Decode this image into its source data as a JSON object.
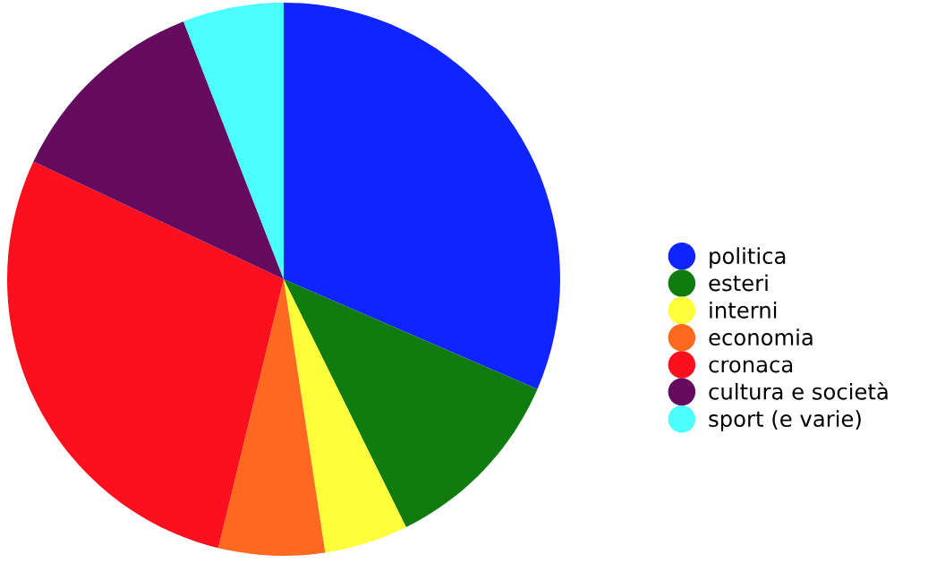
{
  "chart_data": {
    "type": "pie",
    "categories": [
      "politica",
      "esteri",
      "interni",
      "economia",
      "cronaca",
      "cultura e società",
      "sport (e varie)"
    ],
    "values": [
      31.5,
      11.2,
      4.9,
      6.2,
      28.2,
      12.1,
      5.9
    ],
    "colors": [
      "#0f24ff",
      "#107c10",
      "#fefe3a",
      "#fe6920",
      "#fc101e",
      "#650b5f",
      "#4dfeff"
    ],
    "legend": "right"
  }
}
